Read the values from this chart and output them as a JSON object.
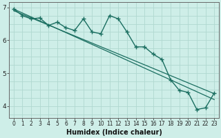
{
  "title": "",
  "xlabel": "Humidex (Indice chaleur)",
  "ylabel": "",
  "background_color": "#ceeee8",
  "grid_color": "#b0d8d0",
  "line_color": "#1a6e60",
  "xlim": [
    -0.5,
    23.5
  ],
  "ylim": [
    3.65,
    7.15
  ],
  "yticks": [
    4,
    5,
    6,
    7
  ],
  "xticks": [
    0,
    1,
    2,
    3,
    4,
    5,
    6,
    7,
    8,
    9,
    10,
    11,
    12,
    13,
    14,
    15,
    16,
    17,
    18,
    19,
    20,
    21,
    22,
    23
  ],
  "data_x": [
    0,
    1,
    2,
    3,
    4,
    5,
    6,
    7,
    8,
    9,
    10,
    11,
    12,
    13,
    14,
    15,
    16,
    17,
    18,
    19,
    20,
    21,
    22,
    23
  ],
  "data_y": [
    6.95,
    6.75,
    6.65,
    6.68,
    6.45,
    6.55,
    6.38,
    6.3,
    6.65,
    6.25,
    6.2,
    6.75,
    6.65,
    6.25,
    5.8,
    5.8,
    5.58,
    5.42,
    4.8,
    4.48,
    4.42,
    3.9,
    3.95,
    4.4
  ],
  "trend1_x": [
    0,
    23
  ],
  "trend1_y": [
    6.95,
    4.2
  ],
  "trend2_x": [
    0,
    23
  ],
  "trend2_y": [
    6.9,
    4.38
  ]
}
